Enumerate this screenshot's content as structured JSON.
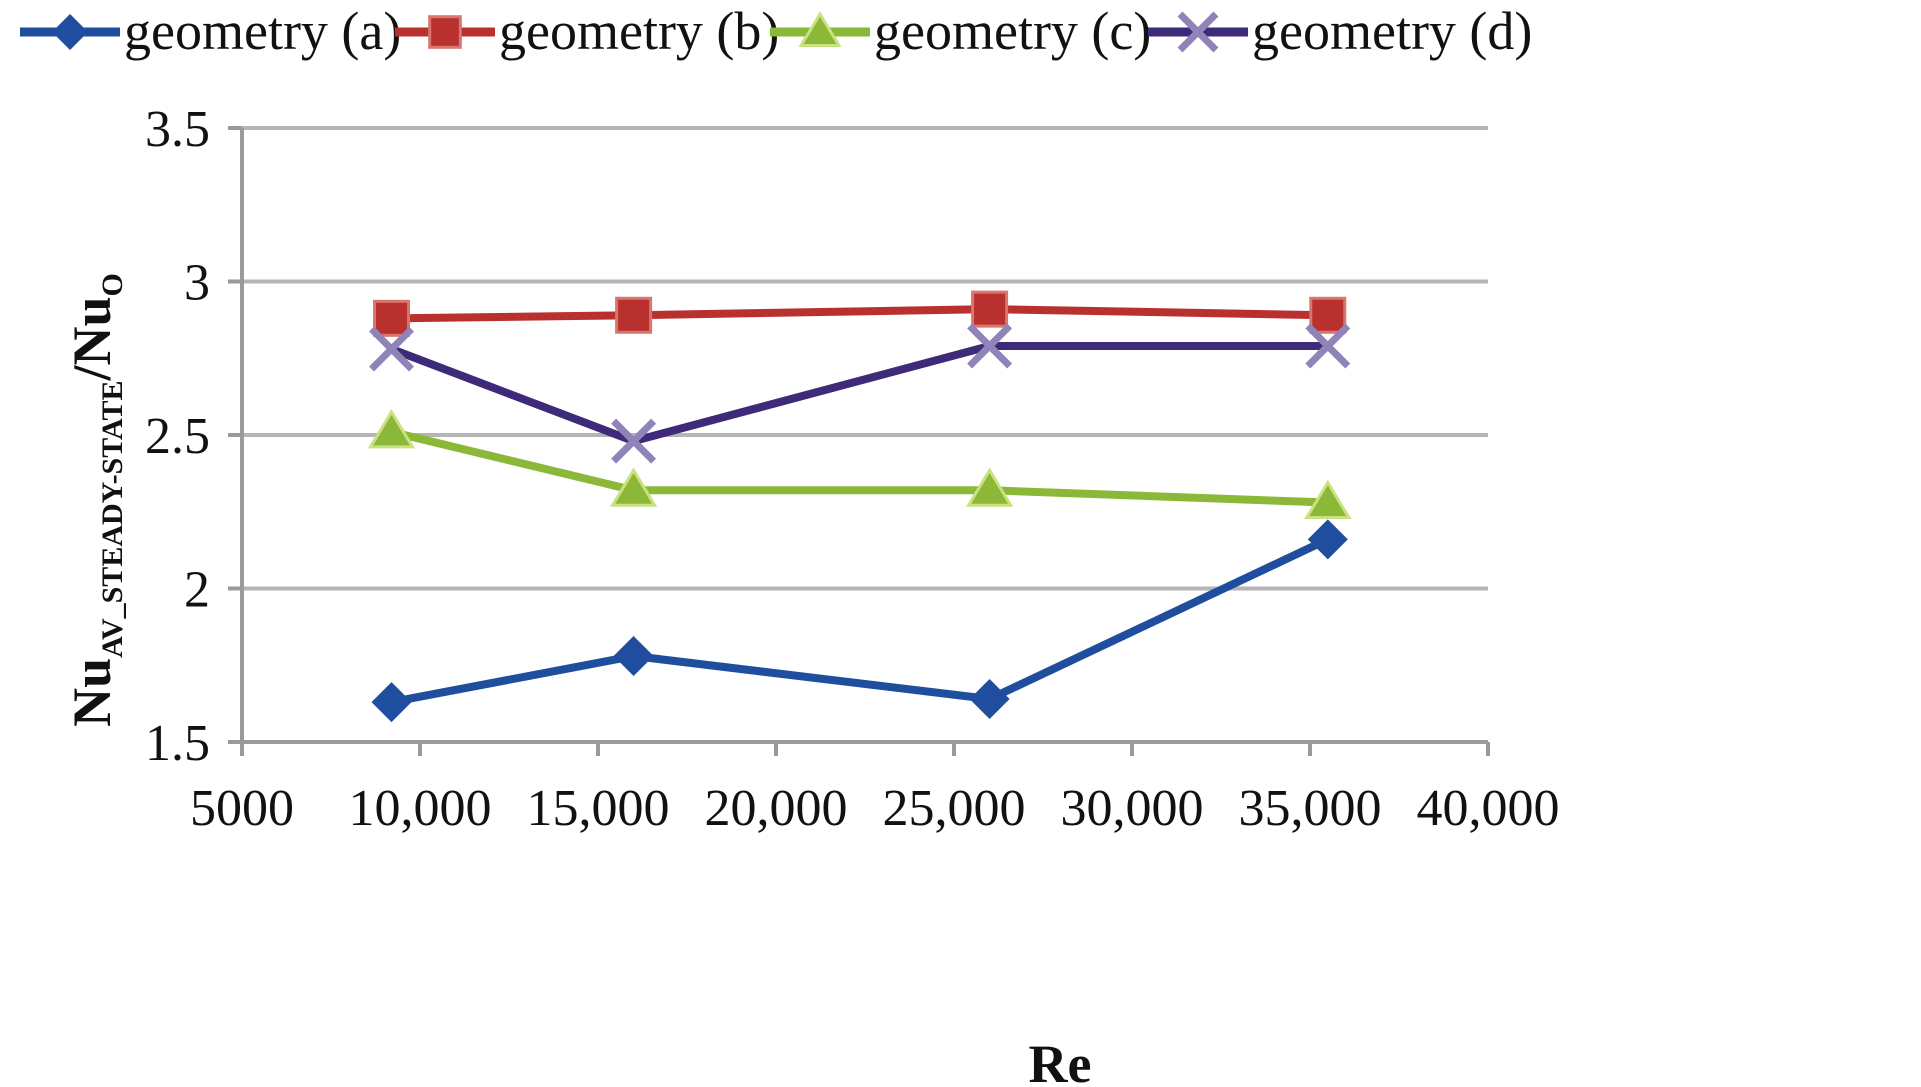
{
  "chart_data": {
    "type": "line",
    "xlabel": "Re",
    "ylabel": {
      "main": "Nu",
      "sub": "AV_STEADY-STATE",
      "sep": "/Nu",
      "sub2": "O"
    },
    "xlim": [
      5000,
      40000
    ],
    "ylim": [
      1.5,
      3.5
    ],
    "xticks": [
      5000,
      10000,
      15000,
      20000,
      25000,
      30000,
      35000,
      40000
    ],
    "xtick_labels": [
      "5000",
      "10,000",
      "15,000",
      "20,000",
      "25,000",
      "30,000",
      "35,000",
      "40,000"
    ],
    "yticks": [
      1.5,
      2,
      2.5,
      3,
      3.5
    ],
    "ytick_labels": [
      "1.5",
      "2",
      "2.5",
      "3",
      "3.5"
    ],
    "grid": "horizontal",
    "legend_position": "top",
    "series": [
      {
        "name": "geometry (a)",
        "color": "#1f4e9e",
        "marker": "diamond",
        "x": [
          9200,
          16000,
          26000,
          35500
        ],
        "y": [
          1.63,
          1.78,
          1.64,
          2.16
        ]
      },
      {
        "name": "geometry (b)",
        "color": "#b8312f",
        "marker": "square",
        "x": [
          9200,
          16000,
          26000,
          35500
        ],
        "y": [
          2.88,
          2.89,
          2.91,
          2.89
        ]
      },
      {
        "name": "geometry (c)",
        "color": "#8cb83a",
        "marker": "triangle",
        "x": [
          9200,
          16000,
          26000,
          35500
        ],
        "y": [
          2.51,
          2.32,
          2.32,
          2.28
        ]
      },
      {
        "name": "geometry (d)",
        "color": "#3d2a78",
        "marker": "x",
        "x": [
          9200,
          16000,
          26000,
          35500
        ],
        "y": [
          2.78,
          2.48,
          2.79,
          2.79
        ]
      }
    ]
  }
}
